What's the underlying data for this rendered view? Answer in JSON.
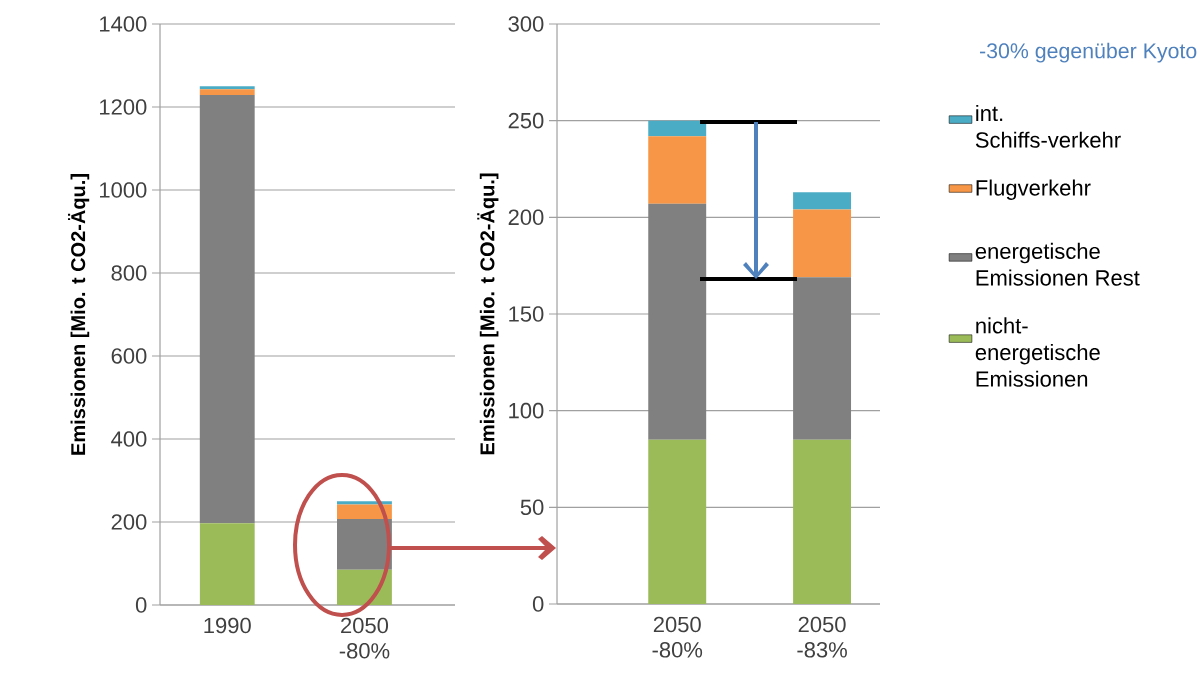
{
  "chart_data": [
    {
      "type": "bar",
      "stacked": true,
      "categories": [
        "1990",
        "2050 -80%"
      ],
      "ylabel": "Emissionen [Mio. t CO2-Äqu.]",
      "ylim": [
        0,
        1400
      ],
      "yticks": [
        0,
        200,
        400,
        600,
        800,
        1000,
        1200,
        1400
      ],
      "grid": "y",
      "series": [
        {
          "color": "#9bbb59",
          "values": [
            197,
            85
          ]
        },
        {
          "color": "#808080",
          "values": [
            1032,
            122
          ]
        },
        {
          "color": "#f79646",
          "values": [
            14,
            35
          ]
        },
        {
          "color": "#4bacc6",
          "values": [
            7,
            8
          ]
        }
      ]
    },
    {
      "type": "bar",
      "stacked": true,
      "categories": [
        "2050 -80%",
        "2050 -83%"
      ],
      "ylabel": "Emissionen [Mio. t CO2-Äqu.]",
      "ylim": [
        0,
        300
      ],
      "yticks": [
        0,
        50,
        100,
        150,
        200,
        250,
        300
      ],
      "grid": "y",
      "legend": "right",
      "annotations": [
        "-30% gegenüber Kyoto"
      ],
      "series": [
        {
          "name": "nicht-energetische Emissionen",
          "color": "#9bbb59",
          "values": [
            85,
            85
          ]
        },
        {
          "name": "energetische Emissionen Rest",
          "color": "#808080",
          "values": [
            122,
            84
          ]
        },
        {
          "name": "Flugverkehr",
          "color": "#f79646",
          "values": [
            35,
            35
          ]
        },
        {
          "name": "int. Schiffs-verkehr",
          "color": "#4bacc6",
          "values": [
            8,
            9
          ]
        }
      ]
    }
  ]
}
